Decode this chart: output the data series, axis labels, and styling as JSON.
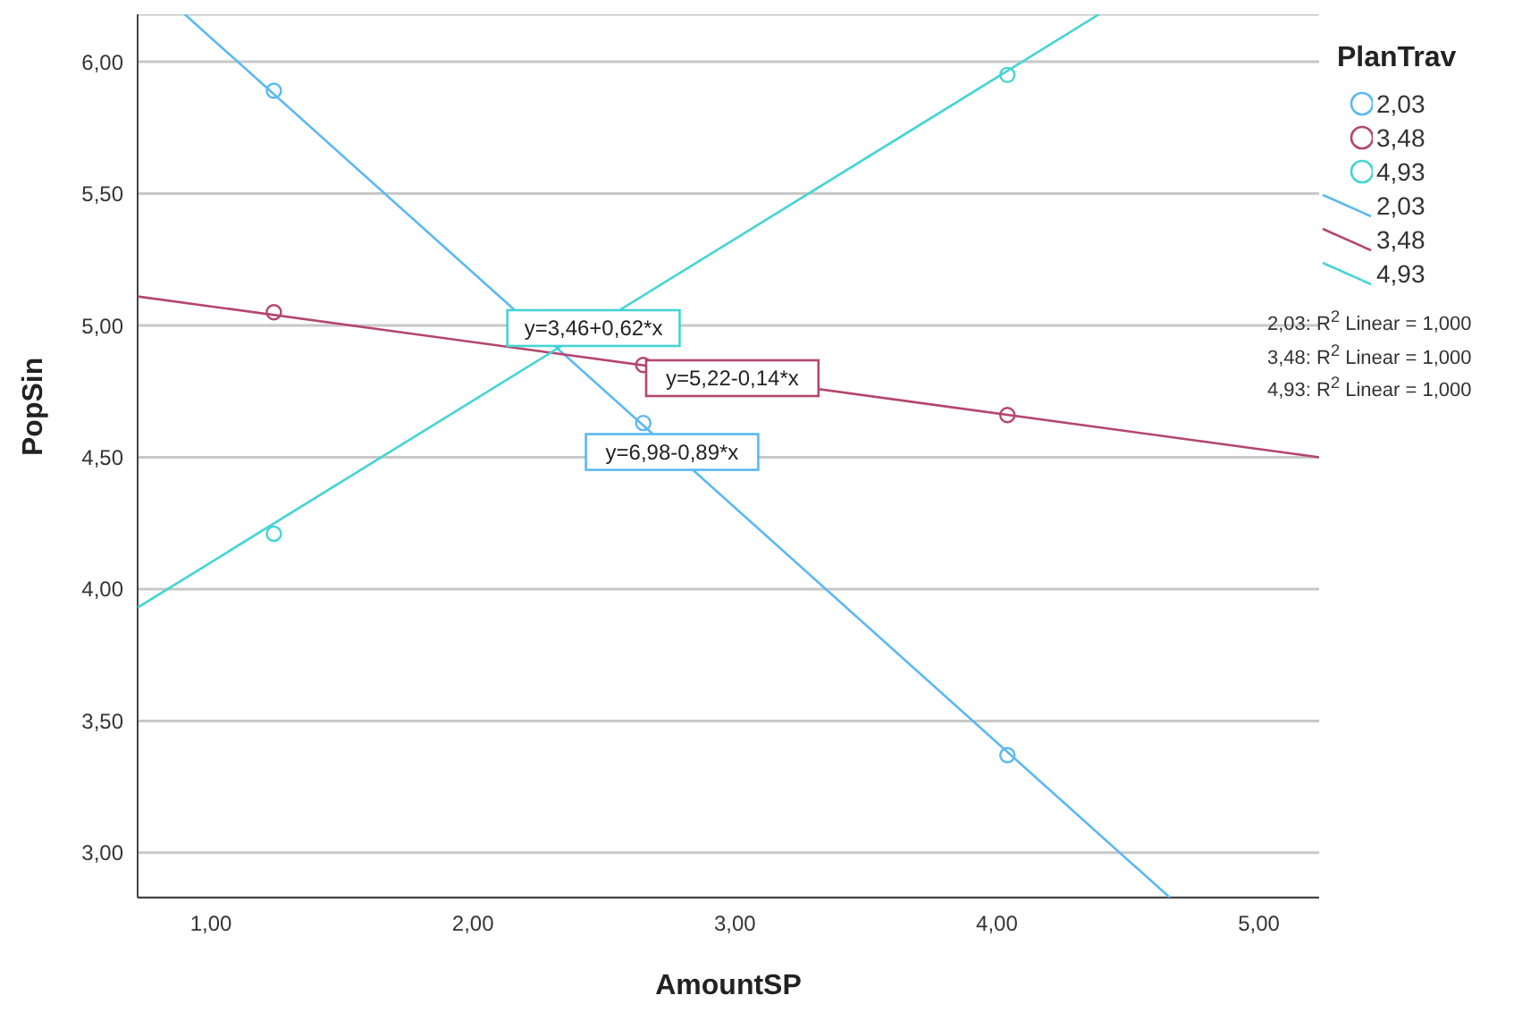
{
  "chart_data": {
    "type": "scatter",
    "xlabel": "AmountSP",
    "ylabel": "PopSin",
    "legend_title": "PlanTrav",
    "legend": "right",
    "grid": "y",
    "marker": "circle",
    "xlim": [
      0.72,
      5.23
    ],
    "xticks": [
      {
        "value": 1,
        "label": "1,00"
      },
      {
        "value": 2,
        "label": "2,00"
      },
      {
        "value": 3,
        "label": "3,00"
      },
      {
        "value": 4,
        "label": "4,00"
      },
      {
        "value": 5,
        "label": "5,00"
      }
    ],
    "ylim": [
      2.83,
      6.18
    ],
    "yticks": [
      {
        "value": 3,
        "label": "3,00"
      },
      {
        "value": 3.5,
        "label": "3,50"
      },
      {
        "value": 4,
        "label": "4,00"
      },
      {
        "value": 4.5,
        "label": "4,50"
      },
      {
        "value": 5,
        "label": "5,00"
      },
      {
        "value": 5.5,
        "label": "5,50"
      },
      {
        "value": 6,
        "label": "6,00"
      }
    ],
    "x": [
      1.24,
      2.65,
      4.04
    ],
    "series": [
      {
        "name": "2,03",
        "color": "#5ab9f2",
        "values": [
          5.89,
          4.63,
          3.37
        ]
      },
      {
        "name": "3,48",
        "color": "#b4466e",
        "values": [
          5.05,
          4.85,
          4.66
        ]
      },
      {
        "name": "4,93",
        "color": "#45d4d4",
        "values": [
          4.21,
          null,
          5.95
        ]
      },
      {
        "name": "2,03",
        "type": "line",
        "marker": "none",
        "color": "#5ab9f2",
        "x": [
          0.9,
          4.66
        ],
        "values": [
          6.18,
          2.83
        ]
      },
      {
        "name": "3,48",
        "type": "line",
        "marker": "none",
        "color": "#b4466e",
        "x": [
          0.72,
          5.23
        ],
        "values": [
          5.11,
          4.5
        ]
      },
      {
        "name": "4,93",
        "type": "line",
        "marker": "none",
        "color": "#45d4d4",
        "x": [
          0.72,
          4.39
        ],
        "values": [
          3.93,
          6.18
        ]
      }
    ],
    "annotations": [
      {
        "text": "y=6,98-0,89*x",
        "x": 2.76,
        "y": 4.52
      },
      {
        "text": "y=5,22-0,14*x",
        "x": 2.99,
        "y": 4.8
      },
      {
        "text": "y=3,46+0,62*x",
        "x": 2.46,
        "y": 4.99
      },
      "2,03: R$^{2}$ Linear = 1,000",
      "3,48: R$^{2}$ Linear = 1,000",
      "4,93: R$^{2}$ Linear = 1,000"
    ]
  }
}
